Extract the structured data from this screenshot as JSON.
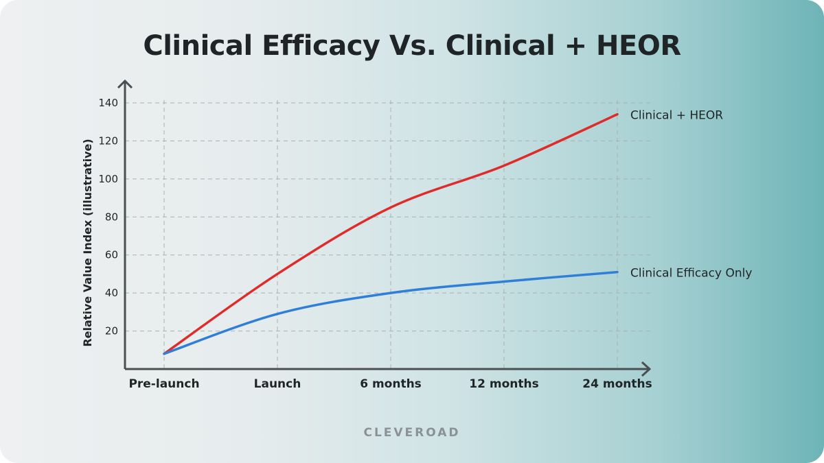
{
  "chart_data": {
    "type": "line",
    "title": "Clinical Efficacy Vs. Clinical + HEOR",
    "xlabel": "",
    "ylabel": "Relative Value Index (illustrative)",
    "categories": [
      "Pre-launch",
      "Launch",
      "6 months",
      "12 months",
      "24 months"
    ],
    "yticks": [
      20,
      40,
      60,
      80,
      100,
      120,
      140
    ],
    "ylim": [
      0,
      140
    ],
    "grid": true,
    "legend": "inline-right",
    "series": [
      {
        "name": "Clinical + HEOR",
        "color": "#e02b2b",
        "values": [
          8,
          50,
          85,
          107,
          134
        ]
      },
      {
        "name": "Clinical Efficacy Only",
        "color": "#2f7fd8",
        "values": [
          8,
          29,
          40,
          46,
          51
        ]
      }
    ]
  },
  "brand": "CLEVEROAD"
}
